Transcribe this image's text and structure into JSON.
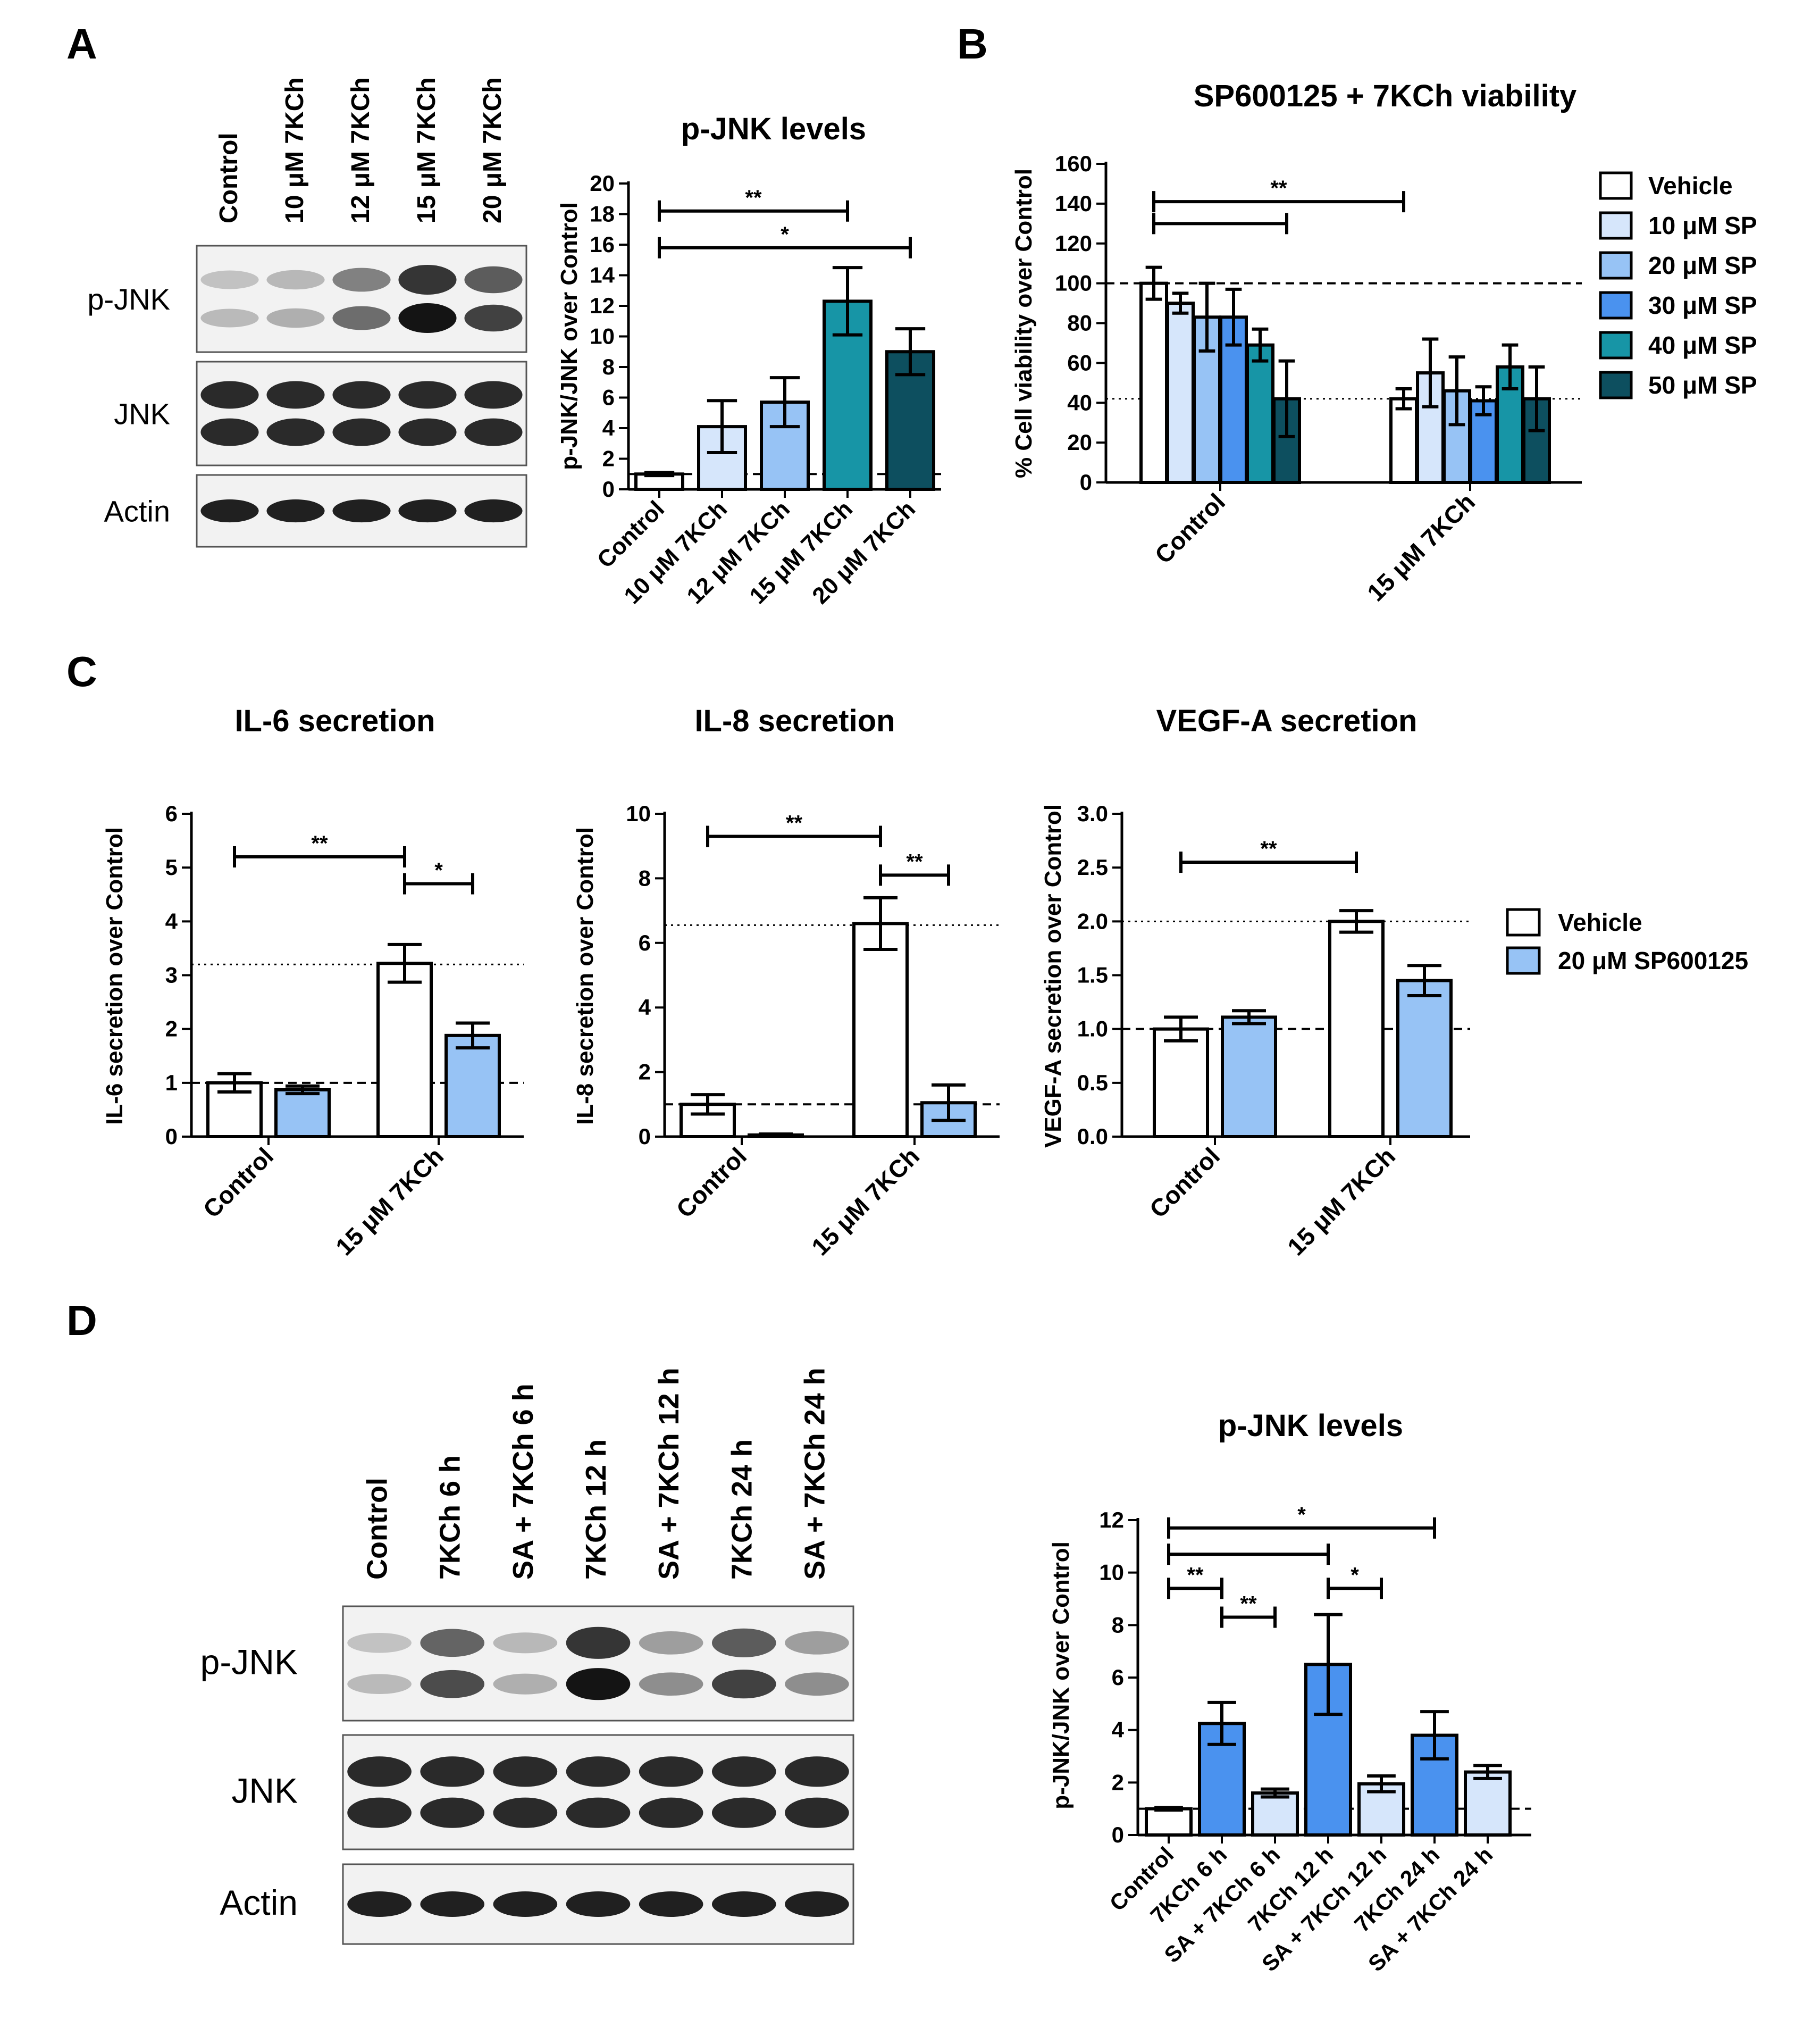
{
  "colors": {
    "white": "#ffffff",
    "sp10": "#d6e6fb",
    "sp20": "#97c3f5",
    "sp30": "#4a92ef",
    "sp40": "#1795a6",
    "sp50": "#0d4f5f",
    "blot_bg": "#f2f2f2",
    "band": "#141414"
  },
  "panels": {
    "A": "A",
    "B": "B",
    "C": "C",
    "D": "D"
  },
  "blots": [
    {
      "id": "blotA",
      "lanes": [
        "Control",
        "10 μM 7KCh",
        "12 μM 7KCh",
        "15 μM 7KCh",
        "20 μM 7KCh"
      ],
      "rows": [
        {
          "label": "p-JNK",
          "intensity": [
            0.25,
            0.3,
            0.6,
            1.0,
            0.8
          ]
        },
        {
          "label": "JNK",
          "intensity": [
            0.9,
            0.9,
            0.9,
            0.9,
            0.9
          ]
        },
        {
          "label": "Actin",
          "intensity": [
            0.95,
            0.95,
            0.95,
            0.95,
            0.95
          ]
        }
      ]
    },
    {
      "id": "blotD",
      "lanes": [
        "Control",
        "7KCh 6 h",
        "SA + 7KCh 6 h",
        "7KCh 12 h",
        "SA + 7KCh 12 h",
        "7KCh 24 h",
        "SA + 7KCh 24 h"
      ],
      "rows": [
        {
          "label": "p-JNK",
          "intensity": [
            0.25,
            0.75,
            0.3,
            1.0,
            0.45,
            0.8,
            0.45
          ]
        },
        {
          "label": "JNK",
          "intensity": [
            0.9,
            0.9,
            0.9,
            0.9,
            0.9,
            0.9,
            0.9
          ]
        },
        {
          "label": "Actin",
          "intensity": [
            0.95,
            0.95,
            0.95,
            0.95,
            0.95,
            0.95,
            0.95
          ]
        }
      ]
    }
  ],
  "chart_data": [
    {
      "id": "chartA",
      "type": "bar",
      "title": "p-JNK levels",
      "ylabel": "p-JNK/JNK over Control",
      "ylim": [
        0,
        20
      ],
      "yticks": [
        "0",
        "2",
        "4",
        "6",
        "8",
        "10",
        "12",
        "14",
        "16",
        "18",
        "20"
      ],
      "categories": [
        "Control",
        "10 μM 7KCh",
        "12 μM 7KCh",
        "15 μM 7KCh",
        "20 μM 7KCh"
      ],
      "values": [
        1,
        4.1,
        5.7,
        12.3,
        9.0
      ],
      "errors": [
        0.1,
        1.7,
        1.6,
        2.2,
        1.5
      ],
      "colors": [
        "white",
        "sp10",
        "sp20",
        "sp40",
        "sp50"
      ],
      "ref_lines": [
        {
          "y": 1,
          "style": "dashed"
        }
      ],
      "significance": [
        {
          "from": 0,
          "to": 3,
          "y": 18.2,
          "label": "**"
        },
        {
          "from": 0,
          "to": 4,
          "y": 15.8,
          "label": "*"
        }
      ]
    },
    {
      "id": "chartB",
      "type": "bar",
      "title": "SP600125 + 7KCh viability",
      "ylabel": "% Cell viability over Control",
      "ylim": [
        0,
        160
      ],
      "yticks": [
        "0",
        "20",
        "40",
        "60",
        "80",
        "100",
        "120",
        "140",
        "160"
      ],
      "categories": [
        "Control",
        "15 μM 7KCh"
      ],
      "series": [
        {
          "name": "Vehicle",
          "color": "white",
          "values": [
            100,
            42
          ],
          "errors": [
            8,
            5
          ]
        },
        {
          "name": "10 μM SP",
          "color": "sp10",
          "values": [
            90,
            55
          ],
          "errors": [
            5,
            17
          ]
        },
        {
          "name": "20 μM SP",
          "color": "sp20",
          "values": [
            83,
            46
          ],
          "errors": [
            17,
            17
          ]
        },
        {
          "name": "30 μM SP",
          "color": "sp30",
          "values": [
            83,
            41
          ],
          "errors": [
            14,
            7
          ]
        },
        {
          "name": "40 μM SP",
          "color": "sp40",
          "values": [
            69,
            58
          ],
          "errors": [
            8,
            11
          ]
        },
        {
          "name": "50 μM SP",
          "color": "sp50",
          "values": [
            42,
            42
          ],
          "errors": [
            19,
            16
          ]
        }
      ],
      "ref_lines": [
        {
          "y": 100,
          "style": "dashed"
        },
        {
          "y": 42,
          "style": "dotted"
        }
      ],
      "significance": [
        {
          "from": [
            0,
            0
          ],
          "to": [
            0,
            5
          ],
          "y": 130,
          "label": ""
        },
        {
          "from": [
            0,
            0
          ],
          "to": [
            1,
            0
          ],
          "y": 141,
          "label": "**"
        }
      ]
    },
    {
      "id": "chartC1",
      "type": "bar",
      "title": "IL-6 secretion",
      "ylabel": "IL-6 secretion over Control",
      "ylim": [
        0,
        6
      ],
      "yticks": [
        "0",
        "1",
        "2",
        "3",
        "4",
        "5",
        "6"
      ],
      "categories": [
        "Control",
        "15 μM 7KCh"
      ],
      "series": [
        {
          "name": "Vehicle",
          "color": "white",
          "values": [
            1.0,
            3.22
          ],
          "errors": [
            0.17,
            0.35
          ]
        },
        {
          "name": "20 μM SP600125",
          "color": "sp20",
          "values": [
            0.87,
            1.88
          ],
          "errors": [
            0.07,
            0.23
          ]
        }
      ],
      "ref_lines": [
        {
          "y": 1,
          "style": "dashed"
        },
        {
          "y": 3.2,
          "style": "dotted"
        }
      ],
      "significance": [
        {
          "from": [
            0,
            0
          ],
          "to": [
            1,
            0
          ],
          "y": 5.2,
          "label": "**"
        },
        {
          "from": [
            1,
            0
          ],
          "to": [
            1,
            1
          ],
          "y": 4.7,
          "label": "*"
        }
      ]
    },
    {
      "id": "chartC2",
      "type": "bar",
      "title": "IL-8 secretion",
      "ylabel": "IL-8 secretion over Control",
      "ylim": [
        0,
        10
      ],
      "yticks": [
        "0",
        "2",
        "4",
        "6",
        "8",
        "10"
      ],
      "categories": [
        "Control",
        "15 μM 7KCh"
      ],
      "series": [
        {
          "name": "Vehicle",
          "color": "white",
          "values": [
            1.0,
            6.6
          ],
          "errors": [
            0.3,
            0.8
          ]
        },
        {
          "name": "20 μM SP600125",
          "color": "sp20",
          "values": [
            0.05,
            1.05
          ],
          "errors": [
            0.03,
            0.55
          ]
        }
      ],
      "ref_lines": [
        {
          "y": 1,
          "style": "dashed"
        },
        {
          "y": 6.55,
          "style": "dotted"
        }
      ],
      "significance": [
        {
          "from": [
            0,
            0
          ],
          "to": [
            1,
            0
          ],
          "y": 9.3,
          "label": "**"
        },
        {
          "from": [
            1,
            0
          ],
          "to": [
            1,
            1
          ],
          "y": 8.1,
          "label": "**"
        }
      ]
    },
    {
      "id": "chartC3",
      "type": "bar",
      "title": "VEGF-A secretion",
      "ylabel": "VEGF-A secretion over Control",
      "ylim": [
        0,
        3
      ],
      "yticks": [
        "0.0",
        "0.5",
        "1.0",
        "1.5",
        "2.0",
        "2.5",
        "3.0"
      ],
      "categories": [
        "Control",
        "15 μM 7KCh"
      ],
      "series": [
        {
          "name": "Vehicle",
          "color": "white",
          "values": [
            1.0,
            2.0
          ],
          "errors": [
            0.11,
            0.1
          ]
        },
        {
          "name": "20 μM SP600125",
          "color": "sp20",
          "values": [
            1.11,
            1.45
          ],
          "errors": [
            0.06,
            0.14
          ]
        }
      ],
      "ref_lines": [
        {
          "y": 1,
          "style": "dashed"
        },
        {
          "y": 2.0,
          "style": "dotted"
        }
      ],
      "significance": [
        {
          "from": [
            0,
            0
          ],
          "to": [
            1,
            0
          ],
          "y": 2.55,
          "label": "**"
        }
      ]
    },
    {
      "id": "chartD",
      "type": "bar",
      "title": "p-JNK levels",
      "ylabel": "p-JNK/JNK over Control",
      "ylim": [
        0,
        12
      ],
      "yticks": [
        "0",
        "2",
        "4",
        "6",
        "8",
        "10",
        "12"
      ],
      "categories": [
        "Control",
        "7KCh 6 h",
        "SA + 7KCh 6 h",
        "7KCh 12 h",
        "SA + 7KCh 12 h",
        "7KCh 24 h",
        "SA + 7KCh 24 h"
      ],
      "values": [
        1.0,
        4.25,
        1.6,
        6.5,
        1.95,
        3.8,
        2.4
      ],
      "errors": [
        0.05,
        0.8,
        0.15,
        1.9,
        0.3,
        0.9,
        0.25
      ],
      "colors": [
        "white",
        "sp30",
        "sp10",
        "sp30",
        "sp10",
        "sp30",
        "sp10"
      ],
      "ref_lines": [
        {
          "y": 1,
          "style": "dashed"
        }
      ],
      "significance": [
        {
          "from": 0,
          "to": 5,
          "y": 11.7,
          "label": "*"
        },
        {
          "from": 0,
          "to": 3,
          "y": 10.7,
          "label": ""
        },
        {
          "from": 0,
          "to": 1,
          "y": 9.4,
          "label": "**"
        },
        {
          "from": 1,
          "to": 2,
          "y": 8.3,
          "label": "**"
        },
        {
          "from": 3,
          "to": 4,
          "y": 9.4,
          "label": "*"
        }
      ]
    }
  ],
  "legends": {
    "B": [
      "Vehicle",
      "10 μM SP",
      "20 μM SP",
      "30 μM SP",
      "40 μM SP",
      "50 μM SP"
    ],
    "C": [
      "Vehicle",
      "20 μM SP600125"
    ]
  }
}
